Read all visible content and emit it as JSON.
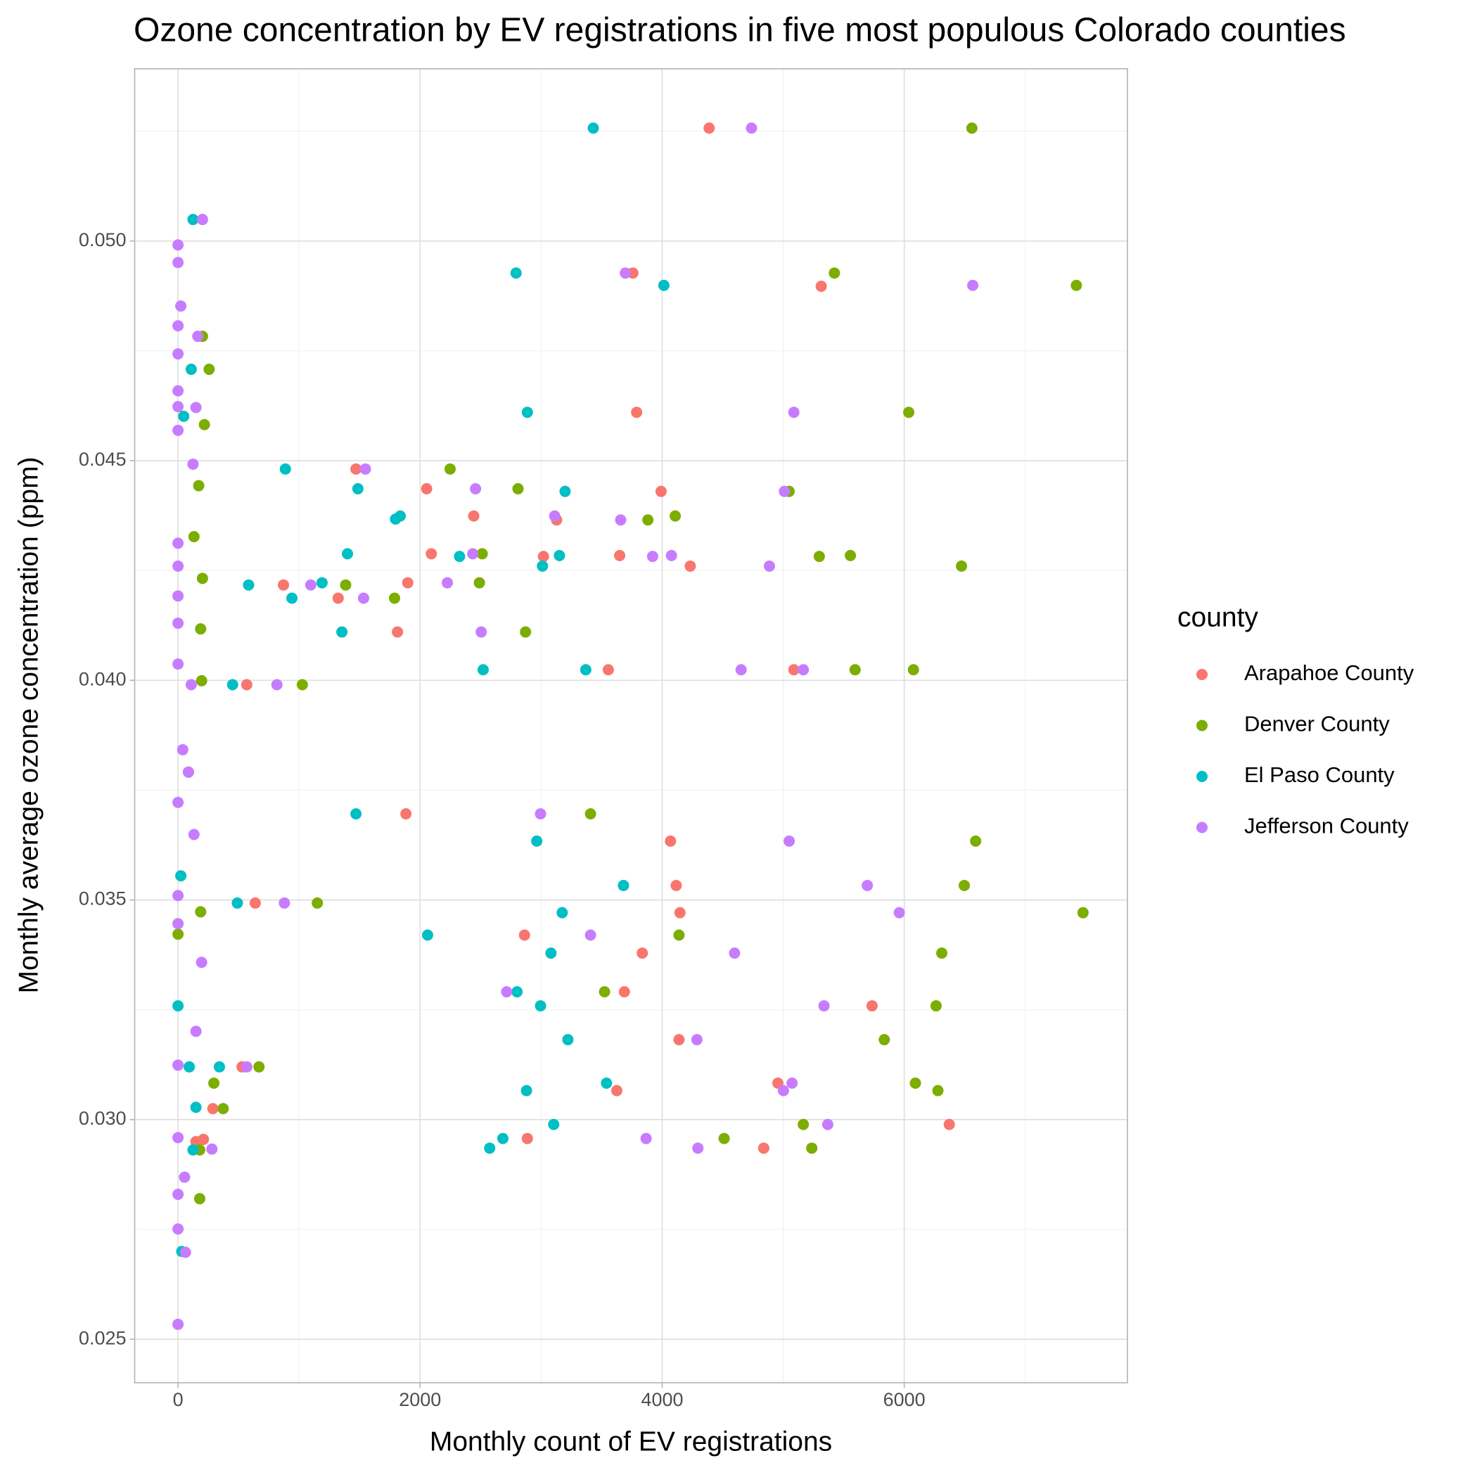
{
  "chart_data": {
    "type": "scatter",
    "title": "Ozone concentration by EV registrations in five most populous Colorado counties",
    "x_label": "Monthly count of EV registrations",
    "y_label": "Monthly average ozone concentration (ppm)",
    "legend_title": "county",
    "legend_position": "right",
    "grid": true,
    "xlim": [
      -358,
      7844
    ],
    "ylim": [
      0.02401,
      0.05392
    ],
    "xticks": [
      0,
      2000,
      4000,
      6000
    ],
    "yticks": [
      {
        "value": 0.025,
        "label": "0.025"
      },
      {
        "value": 0.03,
        "label": "0.030"
      },
      {
        "value": 0.035,
        "label": "0.035"
      },
      {
        "value": 0.04,
        "label": "0.040"
      },
      {
        "value": 0.045,
        "label": "0.045"
      },
      {
        "value": 0.05,
        "label": "0.050"
      }
    ],
    "x_minor_breaks": [
      1000,
      3000,
      5000,
      7000
    ],
    "y_minor_breaks": [
      0.0275,
      0.0325,
      0.0375,
      0.0425,
      0.0475,
      0.0525
    ],
    "series": [
      {
        "name": "Arapahoe County",
        "color": "#F8766D",
        "x": [
          4388,
          6372,
          5314,
          3758,
          3789,
          1470,
          2054,
          3991,
          2443,
          3128,
          2093,
          3019,
          3649,
          4232,
          871,
          1898,
          1323,
          1813,
          3555,
          5088,
          568,
          1883,
          4069,
          4116,
          4147,
          2863,
          3836,
          3688,
          638,
          5734,
          4139,
          4956,
          3625,
          2886,
          4839,
          529,
          288,
          148,
          210
        ],
        "y": [
          0.05257,
          0.02989,
          0.04897,
          0.04927,
          0.0461,
          0.04481,
          0.04436,
          0.0443,
          0.04374,
          0.04365,
          0.04288,
          0.04282,
          0.04284,
          0.0426,
          0.04217,
          0.04222,
          0.04187,
          0.0411,
          0.04024,
          0.04024,
          0.0399,
          0.03696,
          0.03634,
          0.03533,
          0.03471,
          0.0342,
          0.03379,
          0.03291,
          0.03493,
          0.03259,
          0.03182,
          0.03083,
          0.03066,
          0.02957,
          0.02935,
          0.0312,
          0.03025,
          0.0295,
          0.02955
        ]
      },
      {
        "name": "Denver County",
        "color": "#7CAE00",
        "x": [
          6559,
          7422,
          5423,
          6037,
          2248,
          2809,
          5049,
          4108,
          3882,
          2513,
          5298,
          5555,
          6473,
          1385,
          2490,
          1789,
          2871,
          5594,
          6076,
          1027,
          3408,
          6590,
          6496,
          7477,
          4139,
          6310,
          3524,
          1151,
          6263,
          5835,
          6092,
          6278,
          4512,
          5236,
          5166,
          669,
          373,
          202,
          257,
          218,
          171,
          202,
          187,
          195,
          187,
          179,
          0,
          132,
          296,
          179
        ],
        "y": [
          0.05257,
          0.04899,
          0.04927,
          0.0461,
          0.04481,
          0.04436,
          0.0443,
          0.04374,
          0.04365,
          0.04288,
          0.04282,
          0.04284,
          0.0426,
          0.04217,
          0.04222,
          0.04187,
          0.0411,
          0.04024,
          0.04024,
          0.0399,
          0.03696,
          0.03634,
          0.03533,
          0.03471,
          0.0342,
          0.03379,
          0.03291,
          0.03493,
          0.03259,
          0.03182,
          0.03083,
          0.03066,
          0.02957,
          0.02935,
          0.02989,
          0.0312,
          0.03025,
          0.04783,
          0.04708,
          0.04582,
          0.04443,
          0.04232,
          0.04117,
          0.03999,
          0.03473,
          0.0282,
          0.03422,
          0.04327,
          0.03083,
          0.02931
        ]
      },
      {
        "name": "El Paso County",
        "color": "#00BFC4",
        "x": [
          3431,
          2793,
          4014,
          2886,
          887,
          1486,
          3198,
          1836,
          1797,
          1400,
          2326,
          3151,
          3011,
          583,
          1190,
          941,
          1354,
          2521,
          3369,
          451,
          1470,
          2964,
          3680,
          3174,
          2062,
          3081,
          2801,
          490,
          2995,
          3221,
          3540,
          2879,
          2684,
          2575,
          3104,
          342,
          124,
          109,
          23,
          31,
          0,
          47,
          86,
          124,
          148,
          93
        ],
        "y": [
          0.05257,
          0.04927,
          0.04899,
          0.0461,
          0.04481,
          0.04436,
          0.0443,
          0.04374,
          0.04367,
          0.04288,
          0.04282,
          0.04284,
          0.0426,
          0.04217,
          0.04222,
          0.04187,
          0.0411,
          0.04024,
          0.04024,
          0.0399,
          0.03696,
          0.03634,
          0.03533,
          0.03471,
          0.0342,
          0.03379,
          0.03291,
          0.03493,
          0.03259,
          0.03182,
          0.03083,
          0.03066,
          0.02957,
          0.02935,
          0.02989,
          0.0312,
          0.05049,
          0.04708,
          0.03555,
          0.027,
          0.03259,
          0.04601,
          0.03791,
          0.02931,
          0.03028,
          0.0312
        ]
      },
      {
        "name": "Jefferson County",
        "color": "#C77CFF",
        "x": [
          4738,
          6566,
          3696,
          5088,
          1548,
          2458,
          5010,
          3112,
          3657,
          2435,
          3921,
          4077,
          4886,
          1097,
          2225,
          1533,
          2505,
          4652,
          5166,
          817,
          2995,
          5049,
          5695,
          5959,
          3408,
          4598,
          2715,
          879,
          5337,
          4287,
          5073,
          5002,
          3867,
          4295,
          5368,
          568,
          0,
          0,
          23,
          0,
          0,
          0,
          0,
          0,
          0,
          0,
          0,
          0,
          0,
          39,
          0,
          0,
          0,
          0,
          0,
          0,
          0,
          0,
          202,
          163,
          148,
          124,
          132,
          195,
          148,
          280,
          62,
          54,
          109,
          86
        ],
        "y": [
          0.05257,
          0.04899,
          0.04927,
          0.0461,
          0.04481,
          0.04436,
          0.0443,
          0.04374,
          0.04365,
          0.04288,
          0.04282,
          0.04284,
          0.0426,
          0.04217,
          0.04222,
          0.04187,
          0.0411,
          0.04024,
          0.04024,
          0.0399,
          0.03696,
          0.03634,
          0.03533,
          0.03471,
          0.0342,
          0.03379,
          0.03291,
          0.03493,
          0.03259,
          0.03182,
          0.03083,
          0.03066,
          0.02957,
          0.02935,
          0.02989,
          0.0312,
          0.04991,
          0.04951,
          0.04852,
          0.04807,
          0.04743,
          0.04659,
          0.04623,
          0.04569,
          0.04312,
          0.0426,
          0.04192,
          0.0413,
          0.04037,
          0.03842,
          0.03722,
          0.0351,
          0.03446,
          0.03124,
          0.02959,
          0.0283,
          0.02751,
          0.02534,
          0.05049,
          0.04783,
          0.04621,
          0.04492,
          0.03649,
          0.03358,
          0.03201,
          0.02933,
          0.02698,
          0.02869,
          0.0399,
          0.03791
        ]
      }
    ]
  }
}
